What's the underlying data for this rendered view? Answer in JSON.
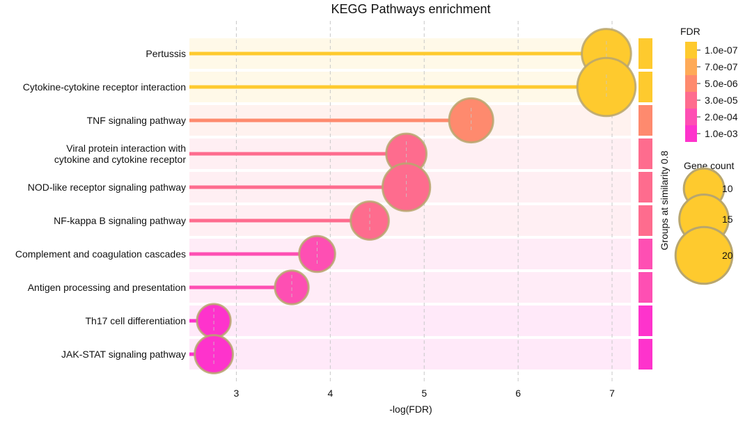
{
  "chart_data": {
    "type": "scatter",
    "title": "KEGG Pathways enrichment",
    "xlabel": "-log(FDR)",
    "xlim": [
      2.5,
      7.2
    ],
    "xticks": [
      "3",
      "4",
      "5",
      "6",
      "7"
    ],
    "grid": true,
    "side_label": "Groups at similarity 0.8",
    "categories": [
      "Pertussis",
      "Cytokine-cytokine receptor interaction",
      "TNF signaling pathway",
      "Viral protein interaction with cytokine and cytokine receptor",
      "NOD-like receptor signaling pathway",
      "NF-kappa B signaling pathway",
      "Complement and coagulation cascades",
      "Antigen processing and presentation",
      "Th17 cell differentiation",
      "JAK-STAT signaling pathway"
    ],
    "category_lines": [
      [
        "Pertussis"
      ],
      [
        "Cytokine-cytokine receptor interaction"
      ],
      [
        "TNF signaling pathway"
      ],
      [
        "Viral protein interaction with",
        "cytokine and cytokine receptor"
      ],
      [
        "NOD-like receptor signaling pathway"
      ],
      [
        "NF-kappa B signaling pathway"
      ],
      [
        "Complement and coagulation cascades"
      ],
      [
        "Antigen processing and presentation"
      ],
      [
        "Th17 cell differentiation"
      ],
      [
        "JAK-STAT signaling pathway"
      ]
    ],
    "points": [
      {
        "x": 6.94,
        "gene_count": 15,
        "fdr": "1.0e-07"
      },
      {
        "x": 6.94,
        "gene_count": 21,
        "fdr": "1.0e-07"
      },
      {
        "x": 5.5,
        "gene_count": 12,
        "fdr": "5.0e-06"
      },
      {
        "x": 4.81,
        "gene_count": 10,
        "fdr": "3.0e-05"
      },
      {
        "x": 4.81,
        "gene_count": 14,
        "fdr": "3.0e-05"
      },
      {
        "x": 4.42,
        "gene_count": 9,
        "fdr": "3.0e-05"
      },
      {
        "x": 3.86,
        "gene_count": 8,
        "fdr": "2.0e-04"
      },
      {
        "x": 3.59,
        "gene_count": 7,
        "fdr": "2.0e-04"
      },
      {
        "x": 2.76,
        "gene_count": 7,
        "fdr": "1.0e-03"
      },
      {
        "x": 2.76,
        "gene_count": 9,
        "fdr": "1.0e-03"
      }
    ],
    "fdr_legend": {
      "title": "FDR",
      "entries": [
        {
          "label": "1.0e-07",
          "color": "#FECA2E"
        },
        {
          "label": "7.0e-07",
          "color": "#FEAA58"
        },
        {
          "label": "5.0e-06",
          "color": "#FE8A6E"
        },
        {
          "label": "3.0e-05",
          "color": "#FE6C8E"
        },
        {
          "label": "2.0e-04",
          "color": "#FE4FB3"
        },
        {
          "label": "1.0e-03",
          "color": "#FE33CC"
        }
      ]
    },
    "size_legend": {
      "title": "Gene count",
      "entries": [
        {
          "label": "10",
          "value": 10
        },
        {
          "label": "15",
          "value": 15
        },
        {
          "label": "20",
          "value": 20
        }
      ]
    }
  }
}
